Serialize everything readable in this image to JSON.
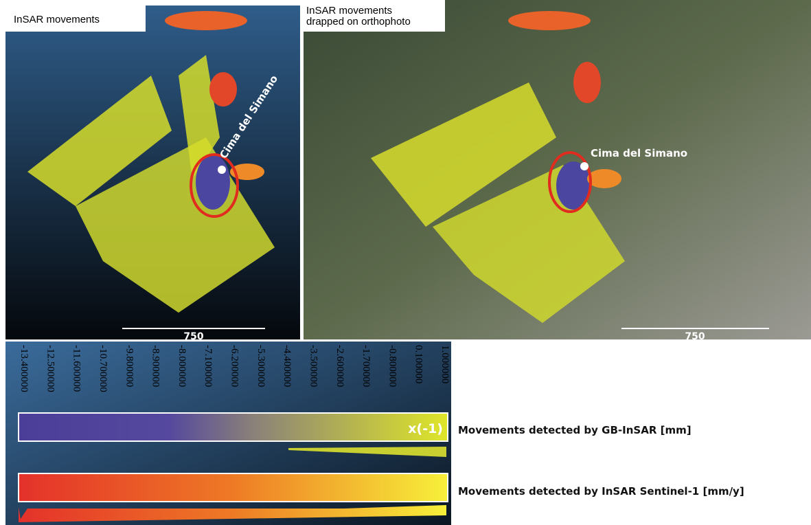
{
  "panels": [
    {
      "label": "InSAR movements",
      "place": "Cima del Simano",
      "scale": "750"
    },
    {
      "label": "InSAR movements\ndrapped on orthophoto",
      "place": "Cima del Simano",
      "scale": "750"
    }
  ],
  "colorbar": {
    "ticks": [
      "-13.400000",
      "-12.500000",
      "-11.600000",
      "-10.700000",
      "-9.800000",
      "-8.900000",
      "-8.000000",
      "-7.100000",
      "-6.200000",
      "-5.300000",
      "-4.400000",
      "-3.500000",
      "-2.600000",
      "-1.700000",
      "-0.800000",
      "0.100000",
      "1.000000"
    ],
    "factor": "x(-1)",
    "legend": [
      "Movements detected by GB-InSAR [mm]",
      "Movements detected by InSAR Sentinel-1 [mm/y]"
    ]
  }
}
